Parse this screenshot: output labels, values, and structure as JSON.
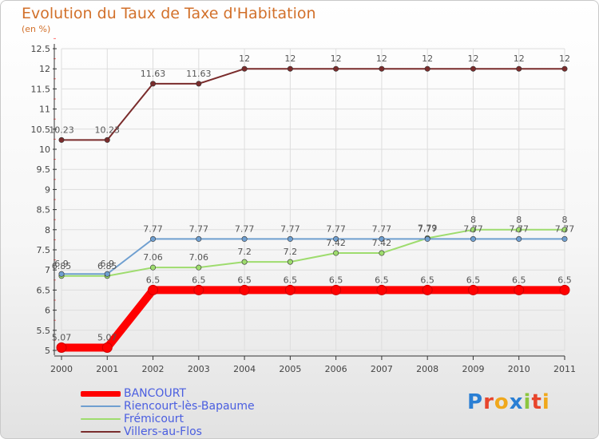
{
  "chart_data": {
    "type": "line",
    "title": "Evolution du Taux de Taxe d'Habitation",
    "ylabel": "(en %)",
    "xlabel": "",
    "ylim": [
      5,
      12.5
    ],
    "yticks": [
      "5",
      "5.5",
      "6",
      "6.5",
      "7",
      "7.5",
      "8",
      "8.5",
      "9",
      "9.5",
      "10",
      "10.5",
      "11",
      "11.5",
      "12",
      "12.5"
    ],
    "categories": [
      "2000",
      "2001",
      "2002",
      "2003",
      "2004",
      "2005",
      "2006",
      "2007",
      "2008",
      "2009",
      "2010",
      "2011"
    ],
    "grid": true,
    "legend_position": "bottom-left",
    "series": [
      {
        "name": "BANCOURT",
        "color": "#ff0000",
        "values": [
          5.07,
          5.07,
          6.5,
          6.5,
          6.5,
          6.5,
          6.5,
          6.5,
          6.5,
          6.5,
          6.5,
          6.5
        ],
        "labels": [
          "5.07",
          "5.07",
          "6.5",
          "6.5",
          "6.5",
          "6.5",
          "6.5",
          "6.5",
          "6.5",
          "6.5",
          "6.5",
          "6.5"
        ]
      },
      {
        "name": "Riencourt-lès-Bapaume",
        "color": "#6f9fd0",
        "values": [
          6.9,
          6.9,
          7.77,
          7.77,
          7.77,
          7.77,
          7.77,
          7.77,
          7.77,
          7.77,
          7.77,
          7.77
        ],
        "labels": [
          "6.9",
          "6.9",
          "7.77",
          "7.77",
          "7.77",
          "7.77",
          "7.77",
          "7.77",
          "7.77",
          "7.77",
          "7.77",
          "7.77"
        ]
      },
      {
        "name": "Frémicourt",
        "color": "#9edc6e",
        "values": [
          6.85,
          6.85,
          7.06,
          7.06,
          7.2,
          7.2,
          7.42,
          7.42,
          7.79,
          8,
          8,
          8
        ],
        "labels": [
          "6.85",
          "6.85",
          "7.06",
          "7.06",
          "7.2",
          "7.2",
          "7.42",
          "7.42",
          "7.79",
          "8",
          "8",
          "8"
        ]
      },
      {
        "name": "Villers-au-Flos",
        "color": "#7a2c2c",
        "values": [
          10.23,
          10.23,
          11.63,
          11.63,
          12,
          12,
          12,
          12,
          12,
          12,
          12,
          12
        ],
        "labels": [
          "10.23",
          "10.23",
          "11.63",
          "11.63",
          "12",
          "12",
          "12",
          "12",
          "12",
          "12",
          "12",
          "12"
        ]
      }
    ]
  },
  "logo": {
    "text": [
      "P",
      "r",
      "o",
      "x",
      "i",
      "t",
      "i"
    ],
    "colors": [
      "#2a7fd4",
      "#e8452c",
      "#f0a81c",
      "#2a7fd4",
      "#8cc63f",
      "#e8452c",
      "#f0a81c"
    ]
  }
}
